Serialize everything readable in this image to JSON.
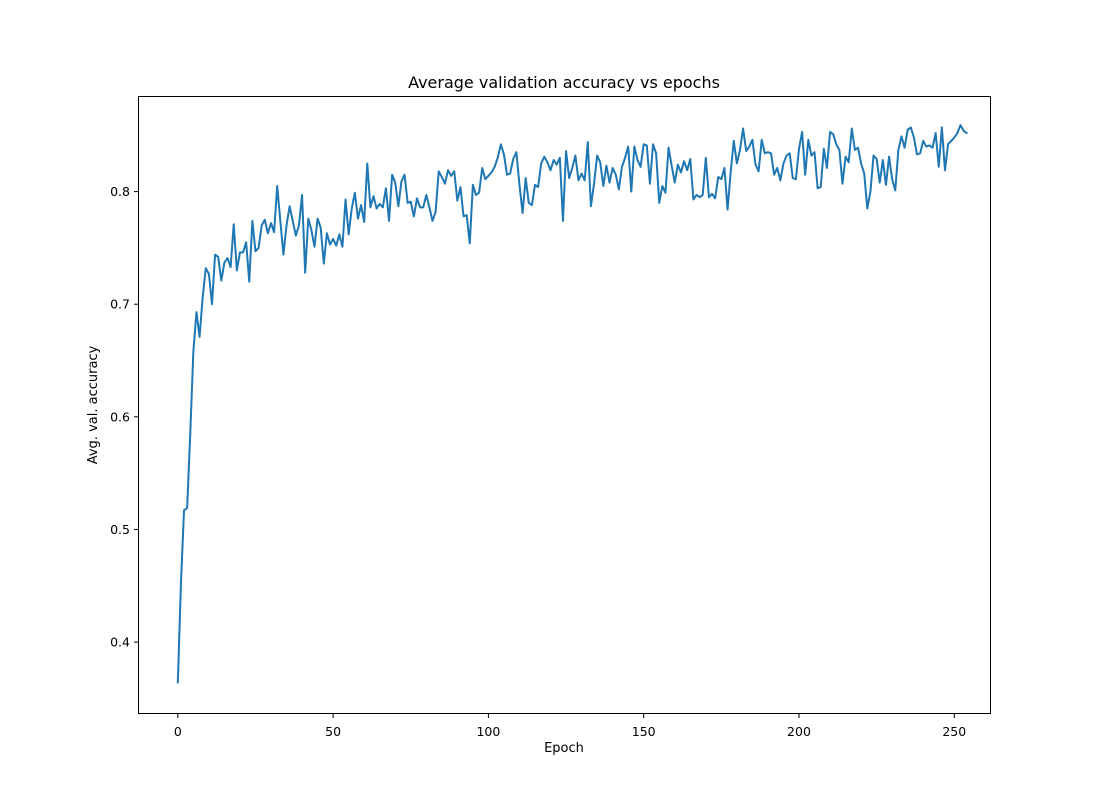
{
  "chart_data": {
    "type": "line",
    "title": "Average validation accuracy vs epochs",
    "xlabel": "Epoch",
    "ylabel": "Avg. val. accuracy",
    "xlim": [
      -12.5,
      261.5
    ],
    "ylim": [
      0.337,
      0.884
    ],
    "xticks": [
      0,
      50,
      100,
      150,
      200,
      250
    ],
    "yticks": [
      0.4,
      0.5,
      0.6,
      0.7,
      0.8
    ],
    "xtick_labels": [
      "0",
      "50",
      "100",
      "150",
      "200",
      "250"
    ],
    "ytick_labels": [
      "0.4",
      "0.5",
      "0.6",
      "0.7",
      "0.8"
    ],
    "grid": false,
    "legend": "none",
    "colors": {
      "line": "#1f77b4"
    },
    "series": [
      {
        "x_start": 0,
        "x_step": 1,
        "values": [
          0.364,
          0.452,
          0.517,
          0.519,
          0.585,
          0.658,
          0.693,
          0.671,
          0.706,
          0.732,
          0.727,
          0.7,
          0.744,
          0.742,
          0.721,
          0.737,
          0.741,
          0.733,
          0.771,
          0.73,
          0.746,
          0.746,
          0.755,
          0.72,
          0.774,
          0.747,
          0.75,
          0.77,
          0.775,
          0.763,
          0.772,
          0.764,
          0.805,
          0.774,
          0.744,
          0.77,
          0.787,
          0.774,
          0.761,
          0.77,
          0.797,
          0.728,
          0.776,
          0.766,
          0.751,
          0.776,
          0.768,
          0.736,
          0.763,
          0.753,
          0.758,
          0.752,
          0.762,
          0.751,
          0.793,
          0.762,
          0.785,
          0.799,
          0.776,
          0.788,
          0.773,
          0.825,
          0.786,
          0.796,
          0.785,
          0.789,
          0.786,
          0.803,
          0.774,
          0.815,
          0.808,
          0.787,
          0.809,
          0.815,
          0.79,
          0.791,
          0.778,
          0.794,
          0.786,
          0.786,
          0.797,
          0.786,
          0.774,
          0.782,
          0.818,
          0.813,
          0.807,
          0.819,
          0.814,
          0.818,
          0.792,
          0.804,
          0.778,
          0.779,
          0.754,
          0.806,
          0.797,
          0.799,
          0.821,
          0.811,
          0.814,
          0.817,
          0.822,
          0.83,
          0.842,
          0.833,
          0.815,
          0.816,
          0.829,
          0.835,
          0.806,
          0.781,
          0.812,
          0.79,
          0.788,
          0.806,
          0.804,
          0.825,
          0.831,
          0.826,
          0.819,
          0.828,
          0.824,
          0.83,
          0.774,
          0.836,
          0.812,
          0.821,
          0.832,
          0.81,
          0.816,
          0.81,
          0.844,
          0.787,
          0.807,
          0.832,
          0.826,
          0.805,
          0.823,
          0.808,
          0.821,
          0.815,
          0.802,
          0.822,
          0.83,
          0.84,
          0.8,
          0.84,
          0.828,
          0.822,
          0.842,
          0.841,
          0.807,
          0.842,
          0.834,
          0.79,
          0.805,
          0.799,
          0.839,
          0.823,
          0.808,
          0.824,
          0.817,
          0.827,
          0.819,
          0.829,
          0.793,
          0.797,
          0.795,
          0.797,
          0.83,
          0.795,
          0.798,
          0.794,
          0.813,
          0.811,
          0.821,
          0.784,
          0.817,
          0.845,
          0.825,
          0.837,
          0.856,
          0.836,
          0.84,
          0.846,
          0.824,
          0.818,
          0.846,
          0.834,
          0.835,
          0.834,
          0.815,
          0.821,
          0.81,
          0.825,
          0.832,
          0.834,
          0.812,
          0.811,
          0.838,
          0.853,
          0.815,
          0.846,
          0.832,
          0.835,
          0.803,
          0.804,
          0.838,
          0.821,
          0.853,
          0.851,
          0.842,
          0.837,
          0.807,
          0.831,
          0.826,
          0.856,
          0.837,
          0.839,
          0.825,
          0.816,
          0.785,
          0.8,
          0.832,
          0.829,
          0.808,
          0.828,
          0.806,
          0.831,
          0.811,
          0.801,
          0.837,
          0.849,
          0.839,
          0.855,
          0.857,
          0.848,
          0.833,
          0.834,
          0.845,
          0.84,
          0.841,
          0.839,
          0.852,
          0.822,
          0.857,
          0.819,
          0.842,
          0.845,
          0.848,
          0.852,
          0.859,
          0.854,
          0.852
        ]
      }
    ]
  }
}
